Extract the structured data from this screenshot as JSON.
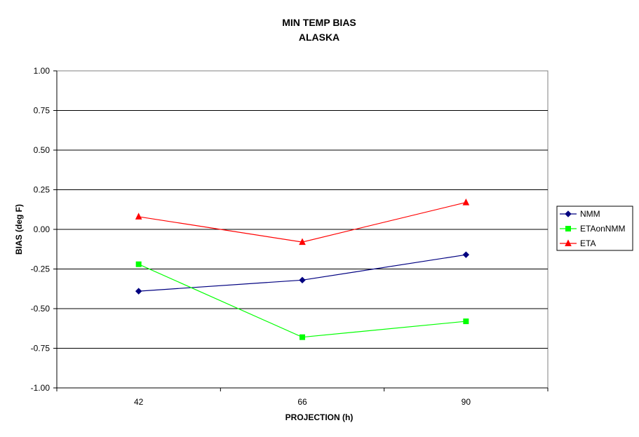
{
  "chart_data": {
    "type": "line",
    "title": "MIN TEMP BIAS",
    "subtitle": "ALASKA",
    "xlabel": "PROJECTION (h)",
    "ylabel": "BIAS (deg F)",
    "categories": [
      "42",
      "66",
      "90"
    ],
    "ylim": [
      -1.0,
      1.0
    ],
    "yticks": [
      "1.00",
      "0.75",
      "0.50",
      "0.25",
      "0.00",
      "-0.25",
      "-0.50",
      "-0.75",
      "-1.00"
    ],
    "ytick_values": [
      1.0,
      0.75,
      0.5,
      0.25,
      0.0,
      -0.25,
      -0.5,
      -0.75,
      -1.0
    ],
    "grid": true,
    "legend_position": "right",
    "series": [
      {
        "name": "NMM",
        "values": [
          -0.39,
          -0.32,
          -0.16
        ],
        "color": "#000080",
        "marker": "diamond"
      },
      {
        "name": "ETAonNMM",
        "values": [
          -0.22,
          -0.68,
          -0.58
        ],
        "color": "#00ff00",
        "marker": "square"
      },
      {
        "name": "ETA",
        "values": [
          0.08,
          -0.08,
          0.17
        ],
        "color": "#ff0000",
        "marker": "triangle"
      }
    ]
  }
}
